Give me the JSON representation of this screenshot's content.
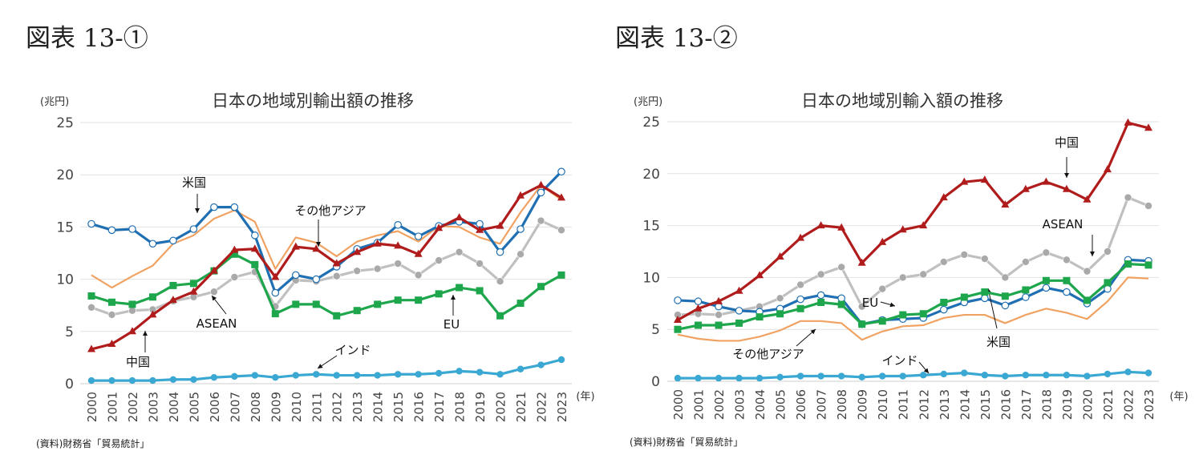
{
  "figures": [
    {
      "label": "図表 13-①"
    },
    {
      "label": "図表 13-②"
    }
  ],
  "chart_data": [
    {
      "type": "line",
      "title": "日本の地域別輸出額の推移",
      "ylabel": "(兆円)",
      "xlabel": "(年)",
      "source": "(資料)財務省「貿易統計」",
      "ylim": [
        0,
        25
      ],
      "yticks": [
        "0",
        "5",
        "10",
        "15",
        "20",
        "25"
      ],
      "grid": true,
      "x": [
        "2000",
        "2001",
        "2002",
        "2003",
        "2004",
        "2005",
        "2006",
        "2007",
        "2008",
        "2009",
        "2010",
        "2011",
        "2012",
        "2013",
        "2014",
        "2015",
        "2016",
        "2017",
        "2018",
        "2019",
        "2020",
        "2021",
        "2022",
        "2023"
      ],
      "series": [
        {
          "name": "その他アジア",
          "color": "#f0a262",
          "marker": "none",
          "values": [
            10.4,
            9.2,
            10.3,
            11.3,
            13.4,
            14.2,
            15.8,
            16.6,
            15.5,
            11.0,
            14.0,
            13.5,
            12.2,
            13.6,
            14.2,
            14.6,
            13.6,
            15.1,
            15.0,
            14.0,
            13.4,
            16.4,
            19.0,
            17.6
          ]
        },
        {
          "name": "インド",
          "color": "#3aa8d2",
          "marker": "circle-filled",
          "values": [
            0.3,
            0.3,
            0.3,
            0.3,
            0.4,
            0.4,
            0.6,
            0.7,
            0.8,
            0.6,
            0.8,
            0.9,
            0.8,
            0.8,
            0.8,
            0.9,
            0.9,
            1.0,
            1.2,
            1.1,
            0.9,
            1.4,
            1.8,
            2.3
          ]
        },
        {
          "name": "ASEAN",
          "color": "#c0c0c0",
          "marker": "circle-gray",
          "values": [
            7.3,
            6.6,
            7.0,
            7.1,
            7.9,
            8.3,
            8.8,
            10.2,
            10.7,
            7.4,
            9.9,
            9.8,
            10.3,
            10.8,
            11.0,
            11.5,
            10.4,
            11.8,
            12.6,
            11.5,
            9.8,
            12.4,
            15.6,
            14.7
          ]
        },
        {
          "name": "EU",
          "color": "#1ea64c",
          "marker": "square",
          "values": [
            8.4,
            7.8,
            7.6,
            8.3,
            9.4,
            9.6,
            10.8,
            12.4,
            11.4,
            6.7,
            7.6,
            7.6,
            6.5,
            7.0,
            7.6,
            8.0,
            8.0,
            8.6,
            9.2,
            8.9,
            6.5,
            7.7,
            9.3,
            10.4
          ]
        },
        {
          "name": "米国",
          "color": "#1f6fb2",
          "marker": "circle-open",
          "values": [
            15.3,
            14.7,
            14.8,
            13.4,
            13.7,
            14.8,
            16.9,
            16.9,
            14.2,
            8.7,
            10.4,
            10.0,
            11.2,
            12.9,
            13.5,
            15.2,
            14.1,
            15.1,
            15.5,
            15.3,
            12.6,
            14.8,
            18.3,
            20.3
          ]
        },
        {
          "name": "中国",
          "color": "#b01c1c",
          "marker": "triangle",
          "values": [
            3.3,
            3.8,
            5.0,
            6.6,
            8.0,
            8.8,
            10.8,
            12.8,
            12.9,
            10.2,
            13.1,
            12.9,
            11.5,
            12.6,
            13.4,
            13.2,
            12.4,
            14.9,
            15.9,
            14.7,
            15.1,
            18.0,
            19.0,
            17.8
          ]
        }
      ]
    },
    {
      "type": "line",
      "title": "日本の地域別輸入額の推移",
      "ylabel": "(兆円)",
      "xlabel": "(年)",
      "source": "(資料)財務省「貿易統計」",
      "ylim": [
        0,
        25
      ],
      "yticks": [
        "0",
        "5",
        "10",
        "15",
        "20",
        "25"
      ],
      "grid": true,
      "x": [
        "2000",
        "2001",
        "2002",
        "2003",
        "2004",
        "2005",
        "2006",
        "2007",
        "2008",
        "2009",
        "2010",
        "2011",
        "2012",
        "2013",
        "2014",
        "2015",
        "2016",
        "2017",
        "2018",
        "2019",
        "2020",
        "2021",
        "2022",
        "2023"
      ],
      "series": [
        {
          "name": "その他アジア",
          "color": "#f0a262",
          "marker": "none",
          "values": [
            4.5,
            4.1,
            3.9,
            3.9,
            4.3,
            4.9,
            5.8,
            5.8,
            5.6,
            4.0,
            4.8,
            5.3,
            5.4,
            6.1,
            6.4,
            6.4,
            5.6,
            6.4,
            7.0,
            6.6,
            6.0,
            7.7,
            10.0,
            9.9
          ]
        },
        {
          "name": "インド",
          "color": "#3aa8d2",
          "marker": "circle-filled",
          "values": [
            0.3,
            0.3,
            0.3,
            0.3,
            0.3,
            0.4,
            0.5,
            0.5,
            0.5,
            0.4,
            0.5,
            0.5,
            0.6,
            0.7,
            0.8,
            0.6,
            0.5,
            0.6,
            0.6,
            0.6,
            0.5,
            0.7,
            0.9,
            0.8
          ]
        },
        {
          "name": "ASEAN",
          "color": "#c0c0c0",
          "marker": "circle-gray",
          "values": [
            6.4,
            6.5,
            6.4,
            6.8,
            7.2,
            8.0,
            9.3,
            10.3,
            11.0,
            7.2,
            8.9,
            10.0,
            10.3,
            11.5,
            12.2,
            11.8,
            10.0,
            11.5,
            12.4,
            11.7,
            10.6,
            12.5,
            17.7,
            16.9
          ]
        },
        {
          "name": "米国",
          "color": "#1f6fb2",
          "marker": "circle-open",
          "values": [
            7.8,
            7.7,
            7.2,
            6.8,
            6.7,
            7.0,
            7.9,
            8.3,
            8.0,
            5.5,
            5.9,
            6.0,
            6.1,
            6.9,
            7.6,
            8.0,
            7.3,
            8.1,
            9.0,
            8.6,
            7.5,
            8.9,
            11.7,
            11.6
          ]
        },
        {
          "name": "EU",
          "color": "#1ea64c",
          "marker": "square",
          "values": [
            5.0,
            5.4,
            5.4,
            5.6,
            6.2,
            6.5,
            7.0,
            7.6,
            7.4,
            5.5,
            5.8,
            6.4,
            6.5,
            7.6,
            8.1,
            8.6,
            8.2,
            8.8,
            9.7,
            9.7,
            7.8,
            9.5,
            11.3,
            11.2
          ]
        },
        {
          "name": "中国",
          "color": "#b01c1c",
          "marker": "triangle",
          "values": [
            5.9,
            7.0,
            7.7,
            8.7,
            10.2,
            12.0,
            13.8,
            15.0,
            14.8,
            11.4,
            13.4,
            14.6,
            15.0,
            17.7,
            19.2,
            19.4,
            17.0,
            18.5,
            19.2,
            18.5,
            17.5,
            20.4,
            24.9,
            24.4
          ]
        }
      ]
    }
  ]
}
